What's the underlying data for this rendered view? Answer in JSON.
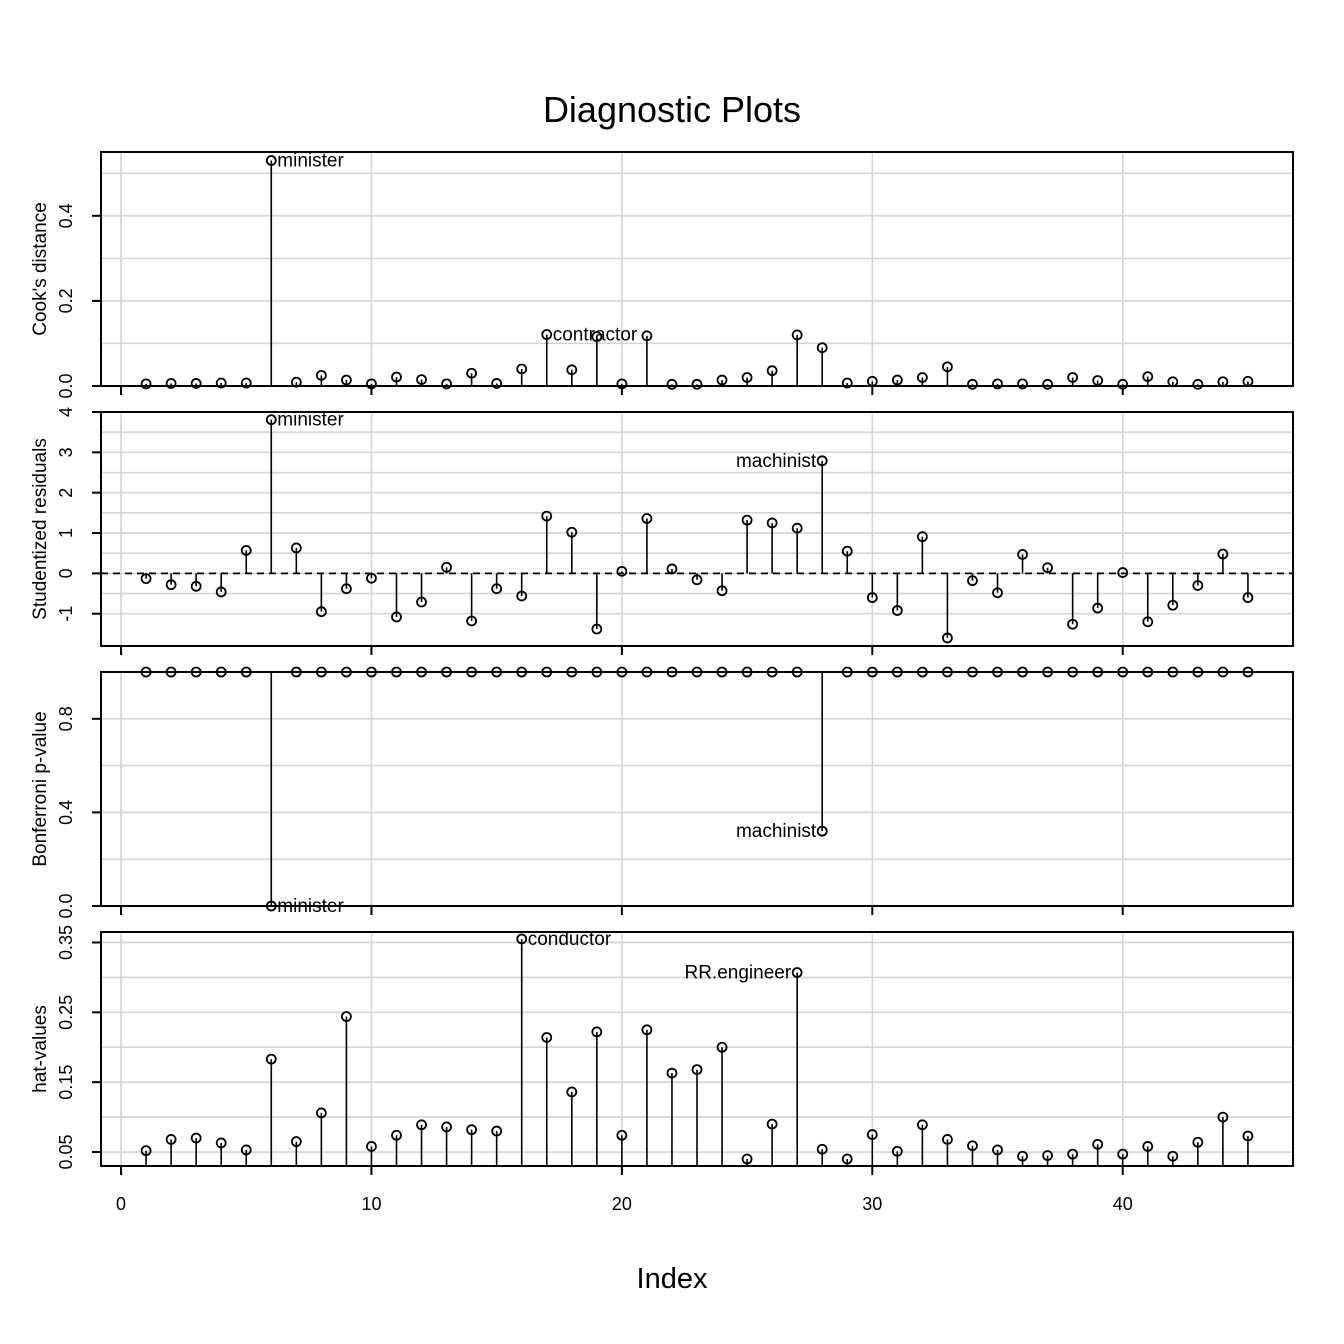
{
  "title": "Diagnostic Plots",
  "xlabel": "Index",
  "chart_data": [
    {
      "type": "stem",
      "ylabel": "Cook's distance",
      "ylim": [
        0.0,
        0.55
      ],
      "yticks": [
        0.0,
        0.2,
        0.4
      ],
      "ytick_labels": [
        "0.0",
        "0.2",
        "0.4"
      ],
      "x": [
        1,
        2,
        3,
        4,
        5,
        6,
        7,
        8,
        9,
        10,
        11,
        12,
        13,
        14,
        15,
        16,
        17,
        18,
        19,
        20,
        21,
        22,
        23,
        24,
        25,
        26,
        27,
        28,
        29,
        30,
        31,
        32,
        33,
        34,
        35,
        36,
        37,
        38,
        39,
        40,
        41,
        42,
        43,
        44,
        45
      ],
      "values": [
        0.005,
        0.006,
        0.006,
        0.007,
        0.007,
        0.53,
        0.009,
        0.025,
        0.014,
        0.005,
        0.021,
        0.015,
        0.005,
        0.03,
        0.006,
        0.04,
        0.121,
        0.038,
        0.116,
        0.005,
        0.118,
        0.004,
        0.004,
        0.014,
        0.02,
        0.036,
        0.12,
        0.09,
        0.007,
        0.011,
        0.014,
        0.02,
        0.045,
        0.004,
        0.005,
        0.005,
        0.004,
        0.02,
        0.013,
        0.004,
        0.022,
        0.01,
        0.004,
        0.01,
        0.011
      ],
      "labels": [
        {
          "index": 6,
          "text": "minister",
          "side": "right"
        },
        {
          "index": 17,
          "text": "contractor",
          "side": "right"
        }
      ]
    },
    {
      "type": "stem",
      "ylabel": "Studentized residuals",
      "ylim": [
        -1.8,
        4.0
      ],
      "yticks": [
        -1,
        0,
        1,
        2,
        3,
        4
      ],
      "ytick_labels": [
        "-1",
        "0",
        "1",
        "2",
        "3",
        "4"
      ],
      "reference_line": 0,
      "x": [
        1,
        2,
        3,
        4,
        5,
        6,
        7,
        8,
        9,
        10,
        11,
        12,
        13,
        14,
        15,
        16,
        17,
        18,
        19,
        20,
        21,
        22,
        23,
        24,
        25,
        26,
        27,
        28,
        29,
        30,
        31,
        32,
        33,
        34,
        35,
        36,
        37,
        38,
        39,
        40,
        41,
        42,
        43,
        44,
        45
      ],
      "values": [
        -0.13,
        -0.28,
        -0.32,
        -0.46,
        0.57,
        3.81,
        0.63,
        -0.95,
        -0.38,
        -0.12,
        -1.08,
        -0.71,
        0.15,
        -1.18,
        -0.38,
        -0.56,
        1.42,
        1.02,
        -1.38,
        0.05,
        1.36,
        0.11,
        -0.16,
        -0.43,
        1.32,
        1.25,
        1.12,
        2.79,
        0.55,
        -0.6,
        -0.92,
        0.91,
        -1.6,
        -0.18,
        -0.48,
        0.47,
        0.14,
        -1.26,
        -0.86,
        0.02,
        -1.2,
        -0.79,
        -0.3,
        0.48,
        -0.6
      ],
      "labels": [
        {
          "index": 6,
          "text": "minister",
          "side": "right"
        },
        {
          "index": 28,
          "text": "machinist",
          "side": "left"
        }
      ]
    },
    {
      "type": "stem",
      "ylabel": "Bonferroni p-value",
      "ylim": [
        0.0,
        1.0
      ],
      "yticks": [
        0.0,
        0.4,
        0.8
      ],
      "ytick_labels": [
        "0.0",
        "0.4",
        "0.8"
      ],
      "baseline": 1.0,
      "x": [
        1,
        2,
        3,
        4,
        5,
        6,
        7,
        8,
        9,
        10,
        11,
        12,
        13,
        14,
        15,
        16,
        17,
        18,
        19,
        20,
        21,
        22,
        23,
        24,
        25,
        26,
        27,
        28,
        29,
        30,
        31,
        32,
        33,
        34,
        35,
        36,
        37,
        38,
        39,
        40,
        41,
        42,
        43,
        44,
        45
      ],
      "values": [
        1,
        1,
        1,
        1,
        1,
        0.0,
        1,
        1,
        1,
        1,
        1,
        1,
        1,
        1,
        1,
        1,
        1,
        1,
        1,
        1,
        1,
        1,
        1,
        1,
        1,
        1,
        1,
        0.32,
        1,
        1,
        1,
        1,
        1,
        1,
        1,
        1,
        1,
        1,
        1,
        1,
        1,
        1,
        1,
        1,
        1
      ],
      "labels": [
        {
          "index": 6,
          "text": "minister",
          "side": "right"
        },
        {
          "index": 28,
          "text": "machinist",
          "side": "left"
        }
      ]
    },
    {
      "type": "stem",
      "ylabel": "hat-values",
      "ylim": [
        0.03,
        0.365
      ],
      "yticks": [
        0.05,
        0.15,
        0.25,
        0.35
      ],
      "ytick_labels": [
        "0.05",
        "0.15",
        "0.25",
        "0.35"
      ],
      "x": [
        1,
        2,
        3,
        4,
        5,
        6,
        7,
        8,
        9,
        10,
        11,
        12,
        13,
        14,
        15,
        16,
        17,
        18,
        19,
        20,
        21,
        22,
        23,
        24,
        25,
        26,
        27,
        28,
        29,
        30,
        31,
        32,
        33,
        34,
        35,
        36,
        37,
        38,
        39,
        40,
        41,
        42,
        43,
        44,
        45
      ],
      "values": [
        0.052,
        0.068,
        0.07,
        0.063,
        0.053,
        0.183,
        0.065,
        0.106,
        0.244,
        0.058,
        0.074,
        0.089,
        0.086,
        0.082,
        0.08,
        0.355,
        0.214,
        0.136,
        0.222,
        0.074,
        0.225,
        0.163,
        0.168,
        0.2,
        0.04,
        0.09,
        0.307,
        0.054,
        0.04,
        0.075,
        0.051,
        0.089,
        0.068,
        0.059,
        0.053,
        0.044,
        0.045,
        0.047,
        0.061,
        0.047,
        0.058,
        0.044,
        0.064,
        0.1,
        0.073
      ],
      "labels": [
        {
          "index": 16,
          "text": "conductor",
          "side": "right"
        },
        {
          "index": 27,
          "text": "RR.engineer",
          "side": "left"
        }
      ]
    }
  ],
  "xaxis": {
    "range": [
      -0.8,
      46.8
    ],
    "ticks": [
      0,
      10,
      20,
      30,
      40
    ],
    "tick_labels": [
      "0",
      "10",
      "20",
      "30",
      "40"
    ]
  },
  "colors": {
    "grid": "#d3d3d3",
    "ink": "#000000",
    "background": "#ffffff"
  }
}
